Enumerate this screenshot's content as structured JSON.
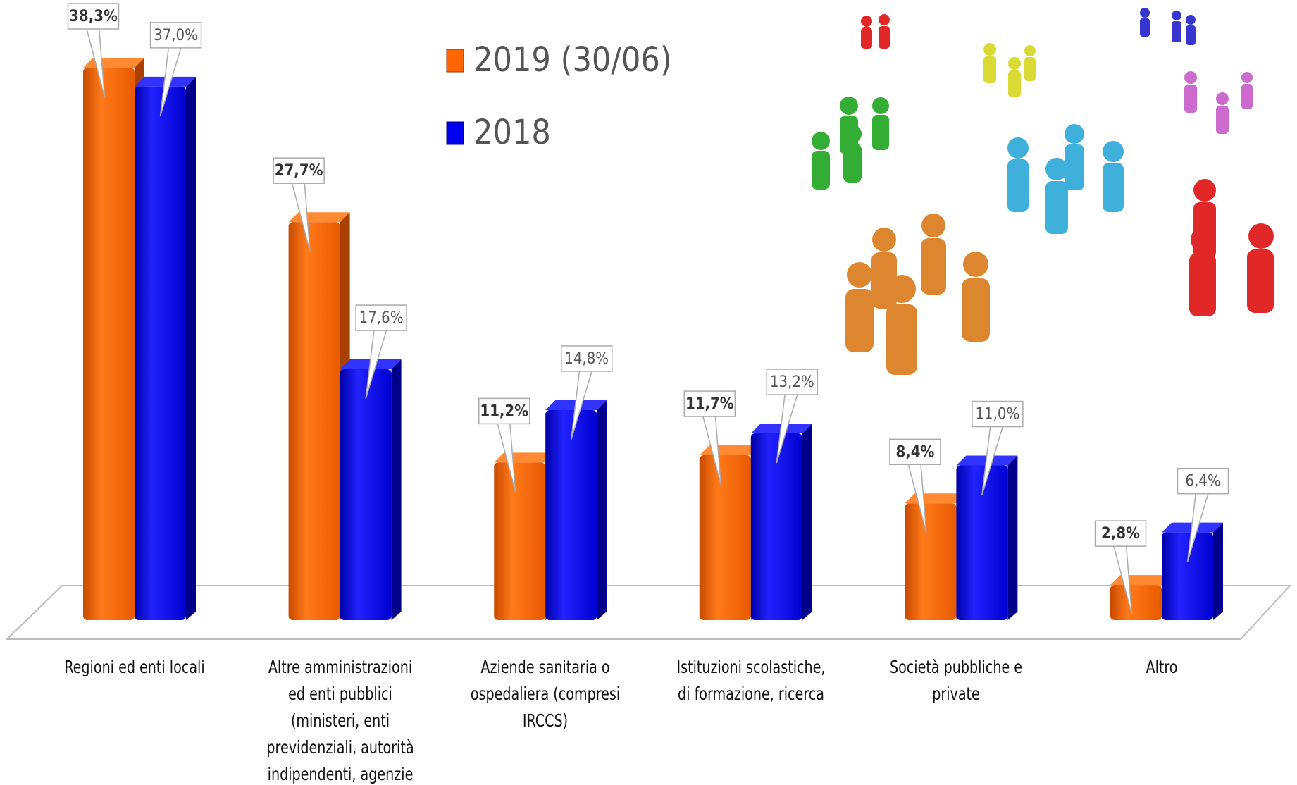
{
  "chart_data": {
    "type": "bar",
    "categories": [
      "Regioni ed enti locali",
      "Altre amministrazioni ed enti pubblici (ministeri, enti previdenziali, autorità indipendenti, agenzie pubbliche, ecc.)",
      "Aziende sanitaria o ospedaliera (compresi IRCCS)",
      "Istituzioni scolastiche, di formazione, ricerca",
      "Società pubbliche e private",
      "Altro"
    ],
    "series": [
      {
        "name": "2019 (30/06)",
        "color": "#ff6600",
        "values": [
          38.3,
          27.7,
          11.2,
          11.7,
          8.4,
          2.8
        ],
        "value_labels": [
          "38,3%",
          "27,7%",
          "11,2%",
          "11,7%",
          "8,4%",
          "2,8%"
        ]
      },
      {
        "name": "2018",
        "color": "#0000ee",
        "values": [
          37.0,
          17.6,
          14.8,
          13.2,
          11.0,
          6.4
        ],
        "value_labels": [
          "37,0%",
          "17,6%",
          "14,8%",
          "13,2%",
          "11,0%",
          "6,4%"
        ]
      }
    ],
    "legend": "top"
  }
}
